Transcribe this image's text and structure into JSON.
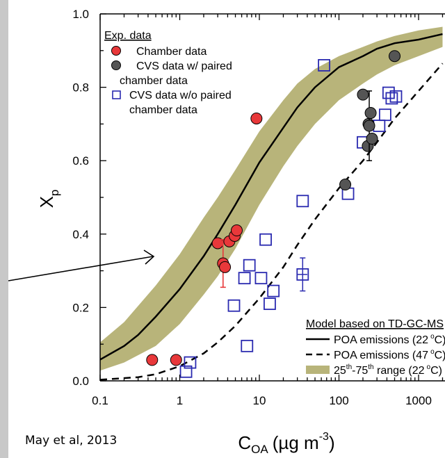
{
  "citation": "May et al, 2013",
  "chart_data": {
    "type": "scatter",
    "xscale": "log",
    "xlim": [
      0.1,
      2000
    ],
    "ylim": [
      0.0,
      1.0
    ],
    "xlabel_main": "C",
    "xlabel_sub": "OA",
    "xlabel_units": "(µg m",
    "xlabel_exp": "-3",
    "xlabel_close": ")",
    "ylabel_main": "X",
    "ylabel_sub": "p",
    "x_ticks": [
      {
        "value": 0.1,
        "label": "0.1"
      },
      {
        "value": 1,
        "label": "1"
      },
      {
        "value": 10,
        "label": "10"
      },
      {
        "value": 100,
        "label": "100"
      },
      {
        "value": 1000,
        "label": "1000"
      }
    ],
    "y_ticks": [
      {
        "value": 0.0,
        "label": "0.0"
      },
      {
        "value": 0.2,
        "label": "0.2"
      },
      {
        "value": 0.4,
        "label": "0.4"
      },
      {
        "value": 0.6,
        "label": "0.6"
      },
      {
        "value": 0.8,
        "label": "0.8"
      },
      {
        "value": 1.0,
        "label": "1.0"
      }
    ],
    "legend_exp": {
      "title": "Exp. data",
      "items": [
        {
          "lines": [
            "Chamber data"
          ]
        },
        {
          "lines": [
            "CVS data w/ paired",
            "chamber data"
          ]
        },
        {
          "lines": [
            "CVS data w/o paired",
            "chamber data"
          ]
        }
      ]
    },
    "legend_model": {
      "title": "Model based on TD-GC-MS",
      "items": [
        {
          "text": "POA emissions (22",
          "sup": "o",
          "end": "C)"
        },
        {
          "text": "POA emissions (47",
          "sup": "o",
          "end": "C)"
        },
        {
          "pre": "25",
          "sup1": "th",
          "mid": "-75",
          "sup2": "th",
          "text": " range (22",
          "sup": "o",
          "end": "C)"
        }
      ]
    },
    "colors": {
      "chamber": "#e8383a",
      "cvs_paired": "#555555",
      "cvs_unpaired": "#2a2ab0",
      "band": "#b8b47a",
      "errorbar_red": "#e8383a"
    },
    "curves": {
      "poa_22C": [
        [
          0.1,
          0.058
        ],
        [
          0.2,
          0.095
        ],
        [
          0.3,
          0.125
        ],
        [
          0.5,
          0.175
        ],
        [
          1,
          0.25
        ],
        [
          2,
          0.34
        ],
        [
          3,
          0.4
        ],
        [
          5,
          0.48
        ],
        [
          10,
          0.595
        ],
        [
          20,
          0.69
        ],
        [
          30,
          0.745
        ],
        [
          50,
          0.8
        ],
        [
          100,
          0.855
        ],
        [
          200,
          0.885
        ],
        [
          300,
          0.905
        ],
        [
          500,
          0.92
        ],
        [
          1000,
          0.93
        ],
        [
          2000,
          0.945
        ]
      ],
      "poa_47C": [
        [
          0.1,
          0.003
        ],
        [
          0.3,
          0.01
        ],
        [
          0.5,
          0.018
        ],
        [
          1,
          0.04
        ],
        [
          2,
          0.075
        ],
        [
          3,
          0.105
        ],
        [
          5,
          0.15
        ],
        [
          10,
          0.225
        ],
        [
          20,
          0.31
        ],
        [
          30,
          0.37
        ],
        [
          50,
          0.44
        ],
        [
          100,
          0.525
        ],
        [
          200,
          0.6
        ],
        [
          300,
          0.65
        ],
        [
          500,
          0.715
        ],
        [
          1000,
          0.79
        ],
        [
          2000,
          0.865
        ]
      ],
      "band_upper": [
        [
          0.1,
          0.105
        ],
        [
          0.2,
          0.16
        ],
        [
          0.5,
          0.26
        ],
        [
          1,
          0.345
        ],
        [
          2,
          0.445
        ],
        [
          3,
          0.5
        ],
        [
          5,
          0.575
        ],
        [
          10,
          0.68
        ],
        [
          20,
          0.765
        ],
        [
          30,
          0.81
        ],
        [
          50,
          0.85
        ],
        [
          100,
          0.885
        ],
        [
          200,
          0.91
        ],
        [
          300,
          0.925
        ],
        [
          500,
          0.94
        ],
        [
          1000,
          0.955
        ],
        [
          2000,
          0.965
        ]
      ],
      "band_lower": [
        [
          0.1,
          0.028
        ],
        [
          0.2,
          0.05
        ],
        [
          0.5,
          0.095
        ],
        [
          1,
          0.155
        ],
        [
          2,
          0.235
        ],
        [
          3,
          0.285
        ],
        [
          5,
          0.36
        ],
        [
          10,
          0.48
        ],
        [
          20,
          0.585
        ],
        [
          30,
          0.64
        ],
        [
          50,
          0.7
        ],
        [
          100,
          0.765
        ],
        [
          200,
          0.81
        ],
        [
          300,
          0.835
        ],
        [
          500,
          0.86
        ],
        [
          1000,
          0.885
        ],
        [
          2000,
          0.91
        ]
      ]
    },
    "chamber_data": [
      {
        "x": 0.45,
        "y": 0.057
      },
      {
        "x": 0.9,
        "y": 0.057
      },
      {
        "x": 3.0,
        "y": 0.375
      },
      {
        "x": 3.5,
        "y": 0.32,
        "yerr": 0.065
      },
      {
        "x": 3.7,
        "y": 0.31
      },
      {
        "x": 4.2,
        "y": 0.38
      },
      {
        "x": 4.9,
        "y": 0.395
      },
      {
        "x": 5.2,
        "y": 0.41
      },
      {
        "x": 9.2,
        "y": 0.715
      }
    ],
    "cvs_paired_data": [
      {
        "x": 120,
        "y": 0.535
      },
      {
        "x": 200,
        "y": 0.78
      },
      {
        "x": 230,
        "y": 0.64
      },
      {
        "x": 235,
        "y": 0.7
      },
      {
        "x": 240,
        "y": 0.695,
        "yerr": 0.095
      },
      {
        "x": 250,
        "y": 0.73
      },
      {
        "x": 260,
        "y": 0.66
      },
      {
        "x": 500,
        "y": 0.885
      }
    ],
    "cvs_unpaired_data": [
      {
        "x": 1.2,
        "y": 0.025
      },
      {
        "x": 1.35,
        "y": 0.05
      },
      {
        "x": 4.8,
        "y": 0.205
      },
      {
        "x": 6.5,
        "y": 0.28
      },
      {
        "x": 7.0,
        "y": 0.095
      },
      {
        "x": 7.5,
        "y": 0.315
      },
      {
        "x": 10.5,
        "y": 0.28
      },
      {
        "x": 12,
        "y": 0.385
      },
      {
        "x": 13.5,
        "y": 0.21
      },
      {
        "x": 15,
        "y": 0.245
      },
      {
        "x": 35,
        "y": 0.49
      },
      {
        "x": 35,
        "y": 0.29,
        "yerr": 0.045,
        "xerr": [
          30,
          40
        ]
      },
      {
        "x": 65,
        "y": 0.86
      },
      {
        "x": 130,
        "y": 0.51
      },
      {
        "x": 200,
        "y": 0.65
      },
      {
        "x": 320,
        "y": 0.695
      },
      {
        "x": 380,
        "y": 0.725
      },
      {
        "x": 420,
        "y": 0.785
      },
      {
        "x": 460,
        "y": 0.77
      },
      {
        "x": 520,
        "y": 0.775
      }
    ]
  }
}
